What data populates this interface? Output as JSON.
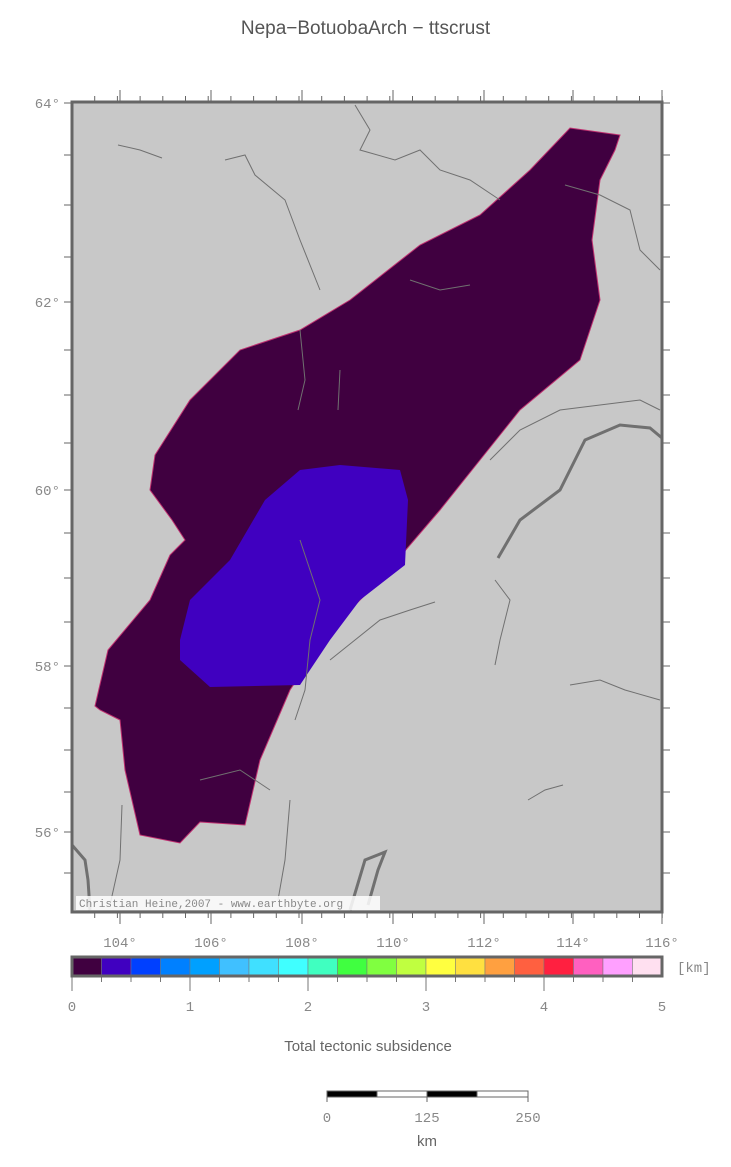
{
  "title": "Nepa−BotuobaArch − ttscrust",
  "map": {
    "lat_labels": [
      "64°",
      "62°",
      "60°",
      "58°",
      "56°"
    ],
    "lon_labels": [
      "104°",
      "106°",
      "108°",
      "110°",
      "112°",
      "114°",
      "116°"
    ],
    "credit": "Christian Heine,2007 - www.earthbyte.org",
    "land_color": "#c8c8c8",
    "region_colors": {
      "outer": "#400040",
      "inner": "#4000c0"
    }
  },
  "colorbar": {
    "unit": "[km]",
    "tick_labels": [
      "0",
      "1",
      "2",
      "3",
      "4",
      "5"
    ],
    "label": "Total tectonic subsidence",
    "colors": [
      "#400040",
      "#4000c0",
      "#0040ff",
      "#0080ff",
      "#00a0ff",
      "#40c0ff",
      "#40e0ff",
      "#40ffff",
      "#40ffc0",
      "#40ff40",
      "#80ff40",
      "#c0ff40",
      "#ffff40",
      "#ffe040",
      "#ffa040",
      "#ff6040",
      "#ff2040",
      "#ff60c0",
      "#ffa0ff",
      "#ffe0f0"
    ]
  },
  "scalebar": {
    "tick_labels": [
      "0",
      "125",
      "250"
    ],
    "unit": "km"
  }
}
